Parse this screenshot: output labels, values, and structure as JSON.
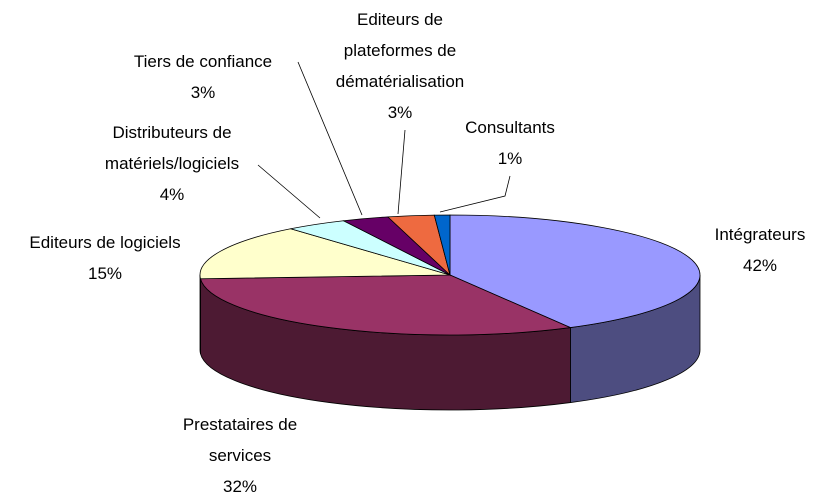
{
  "chart_data": {
    "type": "pie",
    "categories": [
      "Intégrateurs",
      "Prestataires de services",
      "Editeurs de logiciels",
      "Distributeurs de matériels/logiciels",
      "Tiers de confiance",
      "Editeurs de plateformes de dématérialisation",
      "Consultants"
    ],
    "values": [
      42,
      32,
      15,
      4,
      3,
      3,
      1
    ],
    "value_labels": [
      "42%",
      "32%",
      "15%",
      "4%",
      "3%",
      "3%",
      "1%"
    ],
    "colors": [
      "#9999ff",
      "#993366",
      "#ffffcc",
      "#ccffff",
      "#660066",
      "#ee6a40",
      "#0066cc"
    ]
  }
}
